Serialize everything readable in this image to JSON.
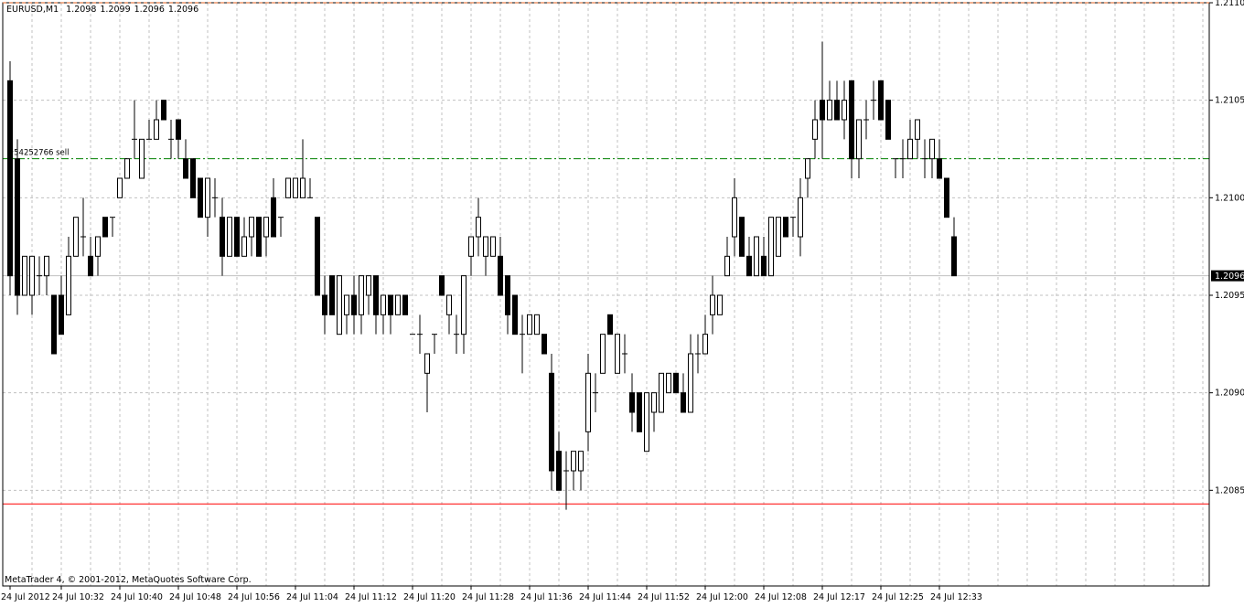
{
  "chart_data": {
    "type": "candlestick",
    "title": "EURUSD,M1",
    "footer": "MetaTrader 4, © 2001-2012, MetaQuotes Software Corp.",
    "x": [
      "24 Jul 2012",
      null,
      null,
      null,
      null,
      null,
      null,
      "24 Jul 10:32",
      null,
      null,
      null,
      null,
      null,
      null,
      null,
      "24 Jul 10:40",
      null,
      null,
      null,
      null,
      null,
      null,
      null,
      "24 Jul 10:48",
      null,
      null,
      null,
      null,
      null,
      null,
      null,
      "24 Jul 10:56",
      null,
      null,
      null,
      null,
      null,
      null,
      null,
      "24 Jul 11:04",
      null,
      null,
      null,
      null,
      null,
      null,
      null,
      "24 Jul 11:12",
      null,
      null,
      null,
      null,
      null,
      null,
      null,
      "24 Jul 11:20",
      null,
      null,
      null,
      null,
      null,
      null,
      null,
      "24 Jul 11:28",
      null,
      null,
      null,
      null,
      null,
      null,
      null,
      "24 Jul 11:36",
      null,
      null,
      null,
      null,
      null,
      null,
      null,
      "24 Jul 11:44",
      null,
      null,
      null,
      null,
      null,
      null,
      null,
      "24 Jul 11:52",
      null,
      null,
      null,
      null,
      null,
      null,
      null,
      "24 Jul 12:00",
      null,
      null,
      null,
      null,
      null,
      null,
      null,
      "24 Jul 12:08",
      null,
      null,
      null,
      null,
      null,
      null,
      null,
      "24 Jul 12:17",
      null,
      null,
      null,
      null,
      null,
      null,
      null,
      "24 Jul 12:25",
      null,
      null,
      null,
      null,
      null,
      null,
      null,
      "24 Jul 12:33",
      null,
      null
    ],
    "open": [
      1.2106,
      1.2102,
      1.2095,
      1.2095,
      1.2096,
      1.2096,
      1.2095,
      1.2095,
      1.2094,
      1.2097,
      1.2098,
      1.2097,
      1.2097,
      1.2099,
      1.2099,
      1.21,
      1.2101,
      1.2103,
      1.2101,
      1.2103,
      1.2103,
      1.2105,
      1.2103,
      1.2104,
      1.2102,
      1.2102,
      1.2101,
      1.2099,
      1.21,
      1.2099,
      1.2097,
      1.2099,
      1.2097,
      1.2098,
      1.2099,
      1.2098,
      1.21,
      1.2099,
      1.21,
      1.21,
      1.21,
      1.21,
      1.2099,
      1.2095,
      1.2096,
      1.2093,
      1.2094,
      1.2095,
      1.2094,
      1.2095,
      1.2096,
      1.2094,
      1.2095,
      1.2094,
      1.2095,
      1.2093,
      1.2093,
      1.2091,
      1.2093,
      1.2096,
      1.2094,
      1.2093,
      1.2093,
      1.2097,
      1.2098,
      1.2097,
      1.2097,
      1.2097,
      1.2096,
      1.2095,
      1.2093,
      1.2093,
      1.2093,
      1.2093,
      1.2091,
      1.2087,
      1.2086,
      1.2086,
      1.2086,
      1.2088,
      1.209,
      1.2091,
      1.2094,
      1.2091,
      1.2092,
      1.209,
      1.209,
      1.2087,
      1.2089,
      1.2089,
      1.209,
      1.2091,
      1.209,
      1.2089,
      1.2092,
      1.2092,
      1.2094,
      1.2094,
      1.2096,
      1.2098,
      1.2099,
      1.2097,
      1.2096,
      1.2097,
      1.2096,
      1.2097,
      1.2099,
      1.2099,
      1.2098,
      1.2101,
      1.2103,
      1.2105,
      1.2104,
      1.2105,
      1.2104,
      1.2106,
      1.2102,
      1.2104,
      1.2105,
      1.2106,
      1.2105,
      1.2102,
      1.2102,
      1.2102,
      1.2103,
      1.2102,
      1.2102,
      1.2102,
      1.2101,
      1.2098
    ],
    "high": [
      1.2107,
      1.2103,
      1.2097,
      1.2097,
      1.2097,
      1.2097,
      1.2095,
      1.2096,
      1.2098,
      1.2099,
      1.21,
      1.2098,
      1.2098,
      1.2099,
      1.2099,
      1.2101,
      1.2102,
      1.2105,
      1.2103,
      1.2104,
      1.2105,
      1.2105,
      1.2104,
      1.2104,
      1.2103,
      1.2102,
      1.2101,
      1.2101,
      1.2101,
      1.21,
      1.2099,
      1.2099,
      1.2099,
      1.2099,
      1.2099,
      1.2099,
      1.2101,
      1.2099,
      1.2101,
      1.2101,
      1.2103,
      1.2101,
      1.2099,
      1.2096,
      1.2096,
      1.2096,
      1.2095,
      1.2096,
      1.2096,
      1.2096,
      1.2096,
      1.2095,
      1.2095,
      1.2095,
      1.2095,
      1.2093,
      1.2094,
      1.2092,
      1.2093,
      1.2096,
      1.2095,
      1.2094,
      1.2096,
      1.2098,
      1.21,
      1.2098,
      1.2098,
      1.2098,
      1.2096,
      1.2095,
      1.2094,
      1.2094,
      1.2094,
      1.2093,
      1.2092,
      1.2088,
      1.2087,
      1.2087,
      1.2087,
      1.2092,
      1.2091,
      1.2093,
      1.2094,
      1.2093,
      1.2093,
      1.2091,
      1.209,
      1.209,
      1.209,
      1.2091,
      1.2091,
      1.2091,
      1.2091,
      1.2093,
      1.2093,
      1.2094,
      1.2096,
      1.2095,
      1.2098,
      1.2101,
      1.2099,
      1.2098,
      1.2098,
      1.2098,
      1.2099,
      1.2099,
      1.2099,
      1.2099,
      1.2101,
      1.2102,
      1.2105,
      1.2108,
      1.2106,
      1.2106,
      1.2106,
      1.2106,
      1.2104,
      1.2105,
      1.2106,
      1.2106,
      1.2105,
      1.2102,
      1.2103,
      1.2104,
      1.2104,
      1.2103,
      1.2103,
      1.2103,
      1.2101,
      1.2099
    ],
    "low": [
      1.2095,
      1.2094,
      1.2095,
      1.2094,
      1.2095,
      1.2095,
      1.2092,
      1.2093,
      1.2094,
      1.2097,
      1.2097,
      1.2096,
      1.2096,
      1.2098,
      1.2098,
      1.21,
      1.2101,
      1.2102,
      1.2101,
      1.2103,
      1.2103,
      1.2104,
      1.2102,
      1.2102,
      1.2101,
      1.21,
      1.2099,
      1.2098,
      1.2099,
      1.2096,
      1.2097,
      1.2097,
      1.2097,
      1.2097,
      1.2097,
      1.2097,
      1.2098,
      1.2098,
      1.21,
      1.21,
      1.21,
      1.21,
      1.2095,
      1.2093,
      1.2094,
      1.2093,
      1.2093,
      1.2093,
      1.2093,
      1.2094,
      1.2093,
      1.2093,
      1.2093,
      1.2094,
      1.2094,
      1.2093,
      1.2092,
      1.2089,
      1.2092,
      1.2095,
      1.2093,
      1.2092,
      1.2092,
      1.2096,
      1.2097,
      1.2096,
      1.2097,
      1.2095,
      1.2093,
      1.2093,
      1.2091,
      1.2093,
      1.2093,
      1.2092,
      1.2085,
      1.2085,
      1.2084,
      1.2085,
      1.2085,
      1.2087,
      1.2089,
      1.2091,
      1.2093,
      1.2091,
      1.2091,
      1.2088,
      1.2088,
      1.2087,
      1.2088,
      1.2089,
      1.209,
      1.209,
      1.2089,
      1.2089,
      1.2091,
      1.2092,
      1.2093,
      1.2094,
      1.2096,
      1.2097,
      1.2097,
      1.2096,
      1.2096,
      1.2096,
      1.2096,
      1.2097,
      1.2098,
      1.2098,
      1.2097,
      1.21,
      1.2102,
      1.2102,
      1.2104,
      1.2104,
      1.2103,
      1.2101,
      1.2101,
      1.2103,
      1.2104,
      1.2104,
      1.2103,
      1.2101,
      1.2101,
      1.2102,
      1.2102,
      1.2101,
      1.2101,
      1.2101,
      1.2099,
      1.2096
    ],
    "close": [
      1.2096,
      1.2095,
      1.2097,
      1.2097,
      1.2096,
      1.2097,
      1.2092,
      1.2093,
      1.2097,
      1.2099,
      1.2098,
      1.2096,
      1.2098,
      1.2098,
      1.2099,
      1.2101,
      1.2102,
      1.2103,
      1.2103,
      1.2103,
      1.2104,
      1.2104,
      1.2103,
      1.2103,
      1.2101,
      1.21,
      1.2099,
      1.2101,
      1.21,
      1.2097,
      1.2099,
      1.2097,
      1.2098,
      1.2099,
      1.2097,
      1.2099,
      1.2098,
      1.2099,
      1.2101,
      1.2101,
      1.2101,
      1.21,
      1.2095,
      1.2094,
      1.2094,
      1.2096,
      1.2095,
      1.2094,
      1.2096,
      1.2096,
      1.2094,
      1.2095,
      1.2094,
      1.2095,
      1.2094,
      1.2093,
      1.2093,
      1.2092,
      1.2093,
      1.2095,
      1.2095,
      1.2093,
      1.2096,
      1.2098,
      1.2099,
      1.2098,
      1.2098,
      1.2095,
      1.2094,
      1.2093,
      1.2093,
      1.2094,
      1.2094,
      1.2092,
      1.2086,
      1.2085,
      1.2086,
      1.2087,
      1.2087,
      1.2091,
      1.209,
      1.2093,
      1.2093,
      1.2093,
      1.2092,
      1.2089,
      1.2088,
      1.209,
      1.209,
      1.2091,
      1.2091,
      1.209,
      1.2089,
      1.2092,
      1.2092,
      1.2093,
      1.2095,
      1.2095,
      1.2097,
      1.21,
      1.2097,
      1.2096,
      1.2098,
      1.2096,
      1.2099,
      1.2099,
      1.2098,
      1.2099,
      1.21,
      1.2102,
      1.2104,
      1.2104,
      1.2105,
      1.2104,
      1.2105,
      1.2102,
      1.2104,
      1.2104,
      1.2105,
      1.2104,
      1.2103,
      1.2102,
      1.2102,
      1.2103,
      1.2104,
      1.2102,
      1.2103,
      1.2101,
      1.2099,
      1.2096
    ],
    "up_color": "#ffffff",
    "down_color": "#000000",
    "ylim": [
      1.208,
      1.211
    ],
    "yticks": [
      {
        "value": 1.211,
        "label": "1.2110"
      },
      1.2105,
      {
        "value": 1.21,
        "label": "1.2100"
      },
      1.2095,
      {
        "value": 1.209,
        "label": "1.2090"
      },
      1.2085
    ],
    "grid": true,
    "levels": [
      {
        "label": "#54252766 sell",
        "value": 1.2102,
        "color": "#008000",
        "style": "dashdot"
      },
      {
        "value": 1.20843,
        "color": "#ff0000",
        "style": "solid"
      }
    ]
  }
}
